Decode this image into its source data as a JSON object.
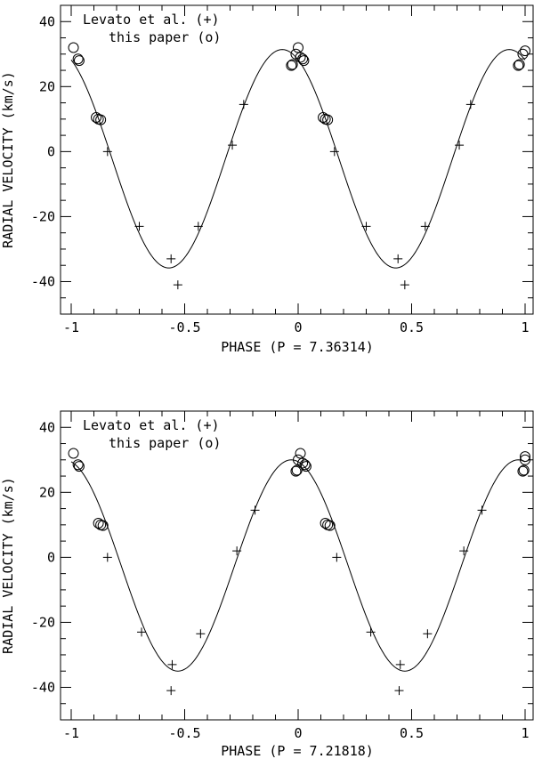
{
  "chart_data": [
    {
      "type": "scatter",
      "xlabel": "PHASE (P = 7.36314)",
      "ylabel": "RADIAL VELOCITY (km/s)",
      "xlim": [
        -1,
        1
      ],
      "ylim": [
        -50,
        45
      ],
      "xticks": [
        -1,
        -0.5,
        0,
        0.5,
        1
      ],
      "xtick_labels": [
        "-1",
        "-0.5",
        "0",
        "0.5",
        "1"
      ],
      "yticks": [
        -40,
        -20,
        0,
        20,
        40
      ],
      "ytick_labels": [
        "-40",
        "-20",
        "0",
        "20",
        "40"
      ],
      "legend": [
        "Levato et al. (+)",
        "this paper (o)"
      ],
      "legend_placement": "top-left",
      "series": [
        {
          "name": "Levato et al. (+)",
          "marker": "plus",
          "points": [
            [
              -0.84,
              0
            ],
            [
              -0.7,
              -23
            ],
            [
              -0.56,
              -33
            ],
            [
              -0.53,
              -41
            ],
            [
              -0.44,
              -23
            ],
            [
              -0.29,
              2
            ],
            [
              -0.24,
              14.5
            ],
            [
              0.16,
              0
            ],
            [
              0.3,
              -23
            ],
            [
              0.44,
              -33
            ],
            [
              0.47,
              -41
            ],
            [
              0.56,
              -23
            ],
            [
              0.71,
              2
            ],
            [
              0.76,
              14.5
            ]
          ]
        },
        {
          "name": "this paper (o)",
          "marker": "circle",
          "points": [
            [
              -0.99,
              32
            ],
            [
              -0.97,
              28.5
            ],
            [
              -0.965,
              28
            ],
            [
              -0.89,
              10.5
            ],
            [
              -0.88,
              10
            ],
            [
              -0.87,
              9.8
            ],
            [
              -0.03,
              26.5
            ],
            [
              -0.025,
              26.8
            ],
            [
              -0.01,
              30
            ],
            [
              0.0,
              32
            ],
            [
              0.01,
              29
            ],
            [
              0.02,
              28.5
            ],
            [
              0.025,
              28
            ],
            [
              0.11,
              10.5
            ],
            [
              0.12,
              10
            ],
            [
              0.13,
              9.8
            ],
            [
              0.97,
              26.5
            ],
            [
              0.975,
              26.8
            ],
            [
              0.99,
              30
            ],
            [
              1.0,
              31
            ]
          ]
        },
        {
          "name": "",
          "type": "line",
          "function": "sine",
          "gamma": -2.2,
          "amplitude": 33.6,
          "peak_phase": -0.07
        }
      ]
    },
    {
      "type": "scatter",
      "xlabel": "PHASE (P = 7.21818)",
      "ylabel": "RADIAL VELOCITY (km/s)",
      "xlim": [
        -1,
        1
      ],
      "ylim": [
        -50,
        45
      ],
      "xticks": [
        -1,
        -0.5,
        0,
        0.5,
        1
      ],
      "xtick_labels": [
        "-1",
        "-0.5",
        "0",
        "0.5",
        "1"
      ],
      "yticks": [
        -40,
        -20,
        0,
        20,
        40
      ],
      "ytick_labels": [
        "-40",
        "-20",
        "0",
        "20",
        "40"
      ],
      "legend": [
        "Levato et al. (+)",
        "this paper (o)"
      ],
      "legend_placement": "top-left",
      "series": [
        {
          "name": "Levato et al. (+)",
          "marker": "plus",
          "points": [
            [
              -0.84,
              0
            ],
            [
              -0.69,
              -23
            ],
            [
              -0.555,
              -33
            ],
            [
              -0.56,
              -41
            ],
            [
              -0.43,
              -23.5
            ],
            [
              -0.27,
              2
            ],
            [
              -0.19,
              14.5
            ],
            [
              0.17,
              0
            ],
            [
              0.32,
              -23
            ],
            [
              0.45,
              -33
            ],
            [
              0.445,
              -41
            ],
            [
              0.57,
              -23.5
            ],
            [
              0.73,
              2
            ],
            [
              0.81,
              14.5
            ]
          ]
        },
        {
          "name": "this paper (o)",
          "marker": "circle",
          "points": [
            [
              -0.99,
              32
            ],
            [
              -0.97,
              28.5
            ],
            [
              -0.965,
              28
            ],
            [
              -0.88,
              10.5
            ],
            [
              -0.87,
              10
            ],
            [
              -0.86,
              9.8
            ],
            [
              -0.01,
              26.5
            ],
            [
              -0.005,
              26.8
            ],
            [
              0.0,
              30
            ],
            [
              0.01,
              32
            ],
            [
              0.02,
              29
            ],
            [
              0.03,
              28.5
            ],
            [
              0.035,
              28
            ],
            [
              0.12,
              10.5
            ],
            [
              0.13,
              10
            ],
            [
              0.14,
              9.8
            ],
            [
              0.99,
              26.5
            ],
            [
              0.995,
              26.8
            ],
            [
              1.0,
              30
            ],
            [
              1.0,
              31
            ]
          ]
        },
        {
          "name": "",
          "type": "line",
          "function": "sine",
          "gamma": -2.5,
          "amplitude": 32.5,
          "peak_phase": -0.03
        }
      ]
    }
  ]
}
